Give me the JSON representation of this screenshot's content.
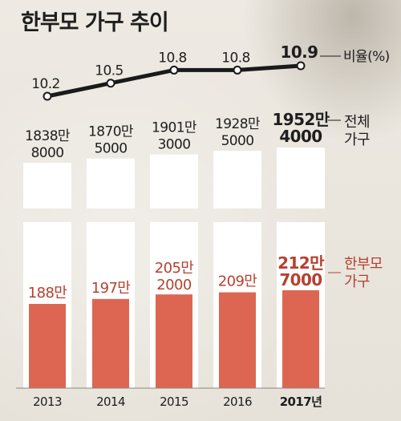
{
  "title": "한부모 가구 추이",
  "colors": {
    "accent": "#dd6652",
    "accent_text": "#b5412f",
    "line": "#1a1a1a",
    "bar_bg": "#ffffff",
    "text": "#1e1e1e"
  },
  "chart_data": {
    "type": "bar",
    "categories": [
      "2013",
      "2014",
      "2015",
      "2016",
      "2017년"
    ],
    "ratio_series": {
      "name": "비율(%)",
      "values": [
        10.2,
        10.5,
        10.8,
        10.8,
        10.9
      ],
      "labels": [
        "10.2",
        "10.5",
        "10.8",
        "10.8",
        "10.9"
      ]
    },
    "series": [
      {
        "name": "전체 가구",
        "values": [
          18388000,
          18705000,
          19013000,
          19285000,
          19524000
        ],
        "labels": [
          [
            "1838만",
            "8000"
          ],
          [
            "1870만",
            "5000"
          ],
          [
            "1901만",
            "3000"
          ],
          [
            "1928만",
            "5000"
          ],
          [
            "1952만",
            "4000"
          ]
        ]
      },
      {
        "name": "한부모 가구",
        "values": [
          1880000,
          1970000,
          2052000,
          2090000,
          2127000
        ],
        "labels": [
          [
            "188만"
          ],
          [
            "197만"
          ],
          [
            "205만",
            "2000"
          ],
          [
            "209만"
          ],
          [
            "212만",
            "7000"
          ]
        ]
      }
    ],
    "legend": {
      "ratio": "비율(%)",
      "total": [
        "전체",
        "가구"
      ],
      "single_parent": [
        "한부모",
        "가구"
      ]
    },
    "legend_placement": "right"
  }
}
